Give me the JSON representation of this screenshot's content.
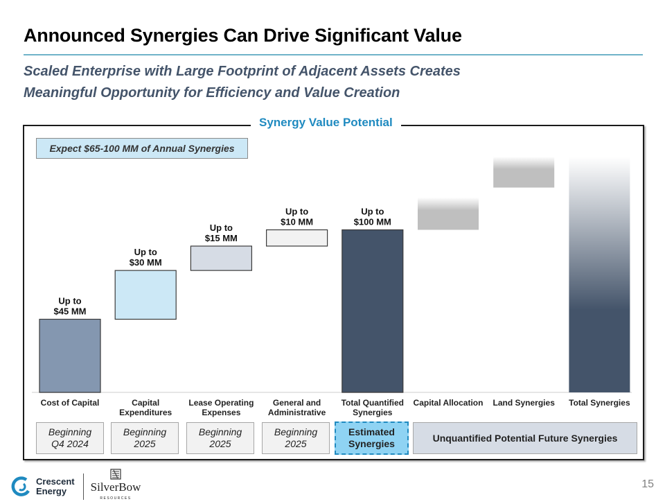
{
  "header": {
    "title": "Announced Synergies Can Drive Significant Value",
    "subtitle_line1": "Scaled Enterprise with Large Footprint of Adjacent Assets Creates",
    "subtitle_line2": "Meaningful Opportunity for Efficiency and Value Creation"
  },
  "panel": {
    "title": "Synergy Value Potential",
    "callout": "Expect $65-100 MM of Annual Synergies"
  },
  "chart_data": {
    "type": "bar",
    "subtype": "waterfall",
    "title": "Synergy Value Potential",
    "units": "$MM (annual, up to)",
    "categories": [
      "Cost of Capital",
      "Capital Expenditures",
      "Lease Operating Expenses",
      "General and Administrative",
      "Total Quantified Synergies",
      "Capital Allocation",
      "Land Synergies",
      "Total Synergies"
    ],
    "category_lines": [
      [
        "Cost of Capital"
      ],
      [
        "Capital",
        "Expenditures"
      ],
      [
        "Lease Operating",
        "Expenses"
      ],
      [
        "General and",
        "Administrative"
      ],
      [
        "Total Quantified",
        "Synergies"
      ],
      [
        "Capital Allocation"
      ],
      [
        "Land Synergies"
      ],
      [
        "Total Synergies"
      ]
    ],
    "bars": [
      {
        "name": "Cost of Capital",
        "start": 0,
        "end": 45,
        "label_line1": "Up to",
        "label_line2": "$45 MM",
        "color": "#8497b0",
        "style": "solid"
      },
      {
        "name": "Capital Expenditures",
        "start": 45,
        "end": 75,
        "label_line1": "Up to",
        "label_line2": "$30 MM",
        "color": "#cce8f6",
        "style": "solid"
      },
      {
        "name": "Lease Operating Expenses",
        "start": 75,
        "end": 90,
        "label_line1": "Up to",
        "label_line2": "$15 MM",
        "color": "#d6dce5",
        "style": "solid"
      },
      {
        "name": "General and Administrative",
        "start": 90,
        "end": 100,
        "label_line1": "Up to",
        "label_line2": "$10 MM",
        "color": "#f2f2f2",
        "style": "solid"
      },
      {
        "name": "Total Quantified Synergies",
        "start": 0,
        "end": 100,
        "label_line1": "Up to",
        "label_line2": "$100 MM",
        "color": "#44546a",
        "style": "solid"
      },
      {
        "name": "Capital Allocation",
        "start": 100,
        "end": 120,
        "label_line1": "",
        "label_line2": "",
        "color": "#bfbfbf",
        "style": "fade"
      },
      {
        "name": "Land Synergies",
        "start": 126,
        "end": 145,
        "label_line1": "",
        "label_line2": "",
        "color": "#bfbfbf",
        "style": "fade"
      },
      {
        "name": "Total Synergies",
        "start": 0,
        "end": 145,
        "label_line1": "",
        "label_line2": "",
        "color": "#44546a",
        "style": "fade"
      }
    ],
    "ylim": [
      0,
      145
    ],
    "grid": false,
    "legend": "none"
  },
  "timing": {
    "items": [
      {
        "line1": "Beginning",
        "line2": "Q4 2024"
      },
      {
        "line1": "Beginning",
        "line2": "2025"
      },
      {
        "line1": "Beginning",
        "line2": "2025"
      },
      {
        "line1": "Beginning",
        "line2": "2025"
      }
    ],
    "estimated": {
      "line1": "Estimated",
      "line2": "Synergies"
    },
    "unquantified": "Unquantified Potential Future Synergies"
  },
  "footer": {
    "crescent_line1": "Crescent",
    "crescent_line2": "Energy",
    "silverbow_name": "SilverBow",
    "silverbow_sub": "RESOURCES",
    "page_number": "15"
  }
}
